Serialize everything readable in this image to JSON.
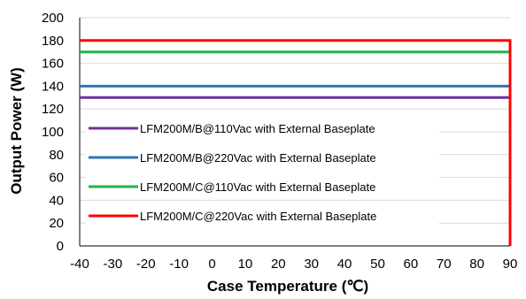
{
  "chart_data": {
    "type": "line",
    "title": "",
    "xlabel": "Case Temperature (℃)",
    "ylabel": "Output Power (W)",
    "xlim": [
      -40,
      90
    ],
    "ylim": [
      0,
      200
    ],
    "x_ticks": [
      -40,
      -30,
      -20,
      -10,
      0,
      10,
      20,
      30,
      40,
      50,
      60,
      70,
      80,
      90
    ],
    "y_ticks": [
      0,
      20,
      40,
      60,
      80,
      100,
      120,
      140,
      160,
      180,
      200
    ],
    "grid": "horizontal",
    "legend_position": "left-center",
    "series": [
      {
        "name": "LFM200M/B@110Vac with External Baseplate",
        "color": "#7030a0",
        "x": [
          -40,
          90
        ],
        "y": [
          130,
          130
        ]
      },
      {
        "name": "LFM200M/B@220Vac with External Baseplate",
        "color": "#2e75b6",
        "x": [
          -40,
          90
        ],
        "y": [
          140,
          140
        ]
      },
      {
        "name": "LFM200M/C@110Vac with External Baseplate",
        "color": "#22b14c",
        "x": [
          -40,
          90
        ],
        "y": [
          170,
          170
        ]
      },
      {
        "name": "LFM200M/C@220Vac with External Baseplate",
        "color": "#ff0000",
        "x": [
          -40,
          90,
          90
        ],
        "y": [
          180,
          180,
          0
        ]
      }
    ]
  }
}
